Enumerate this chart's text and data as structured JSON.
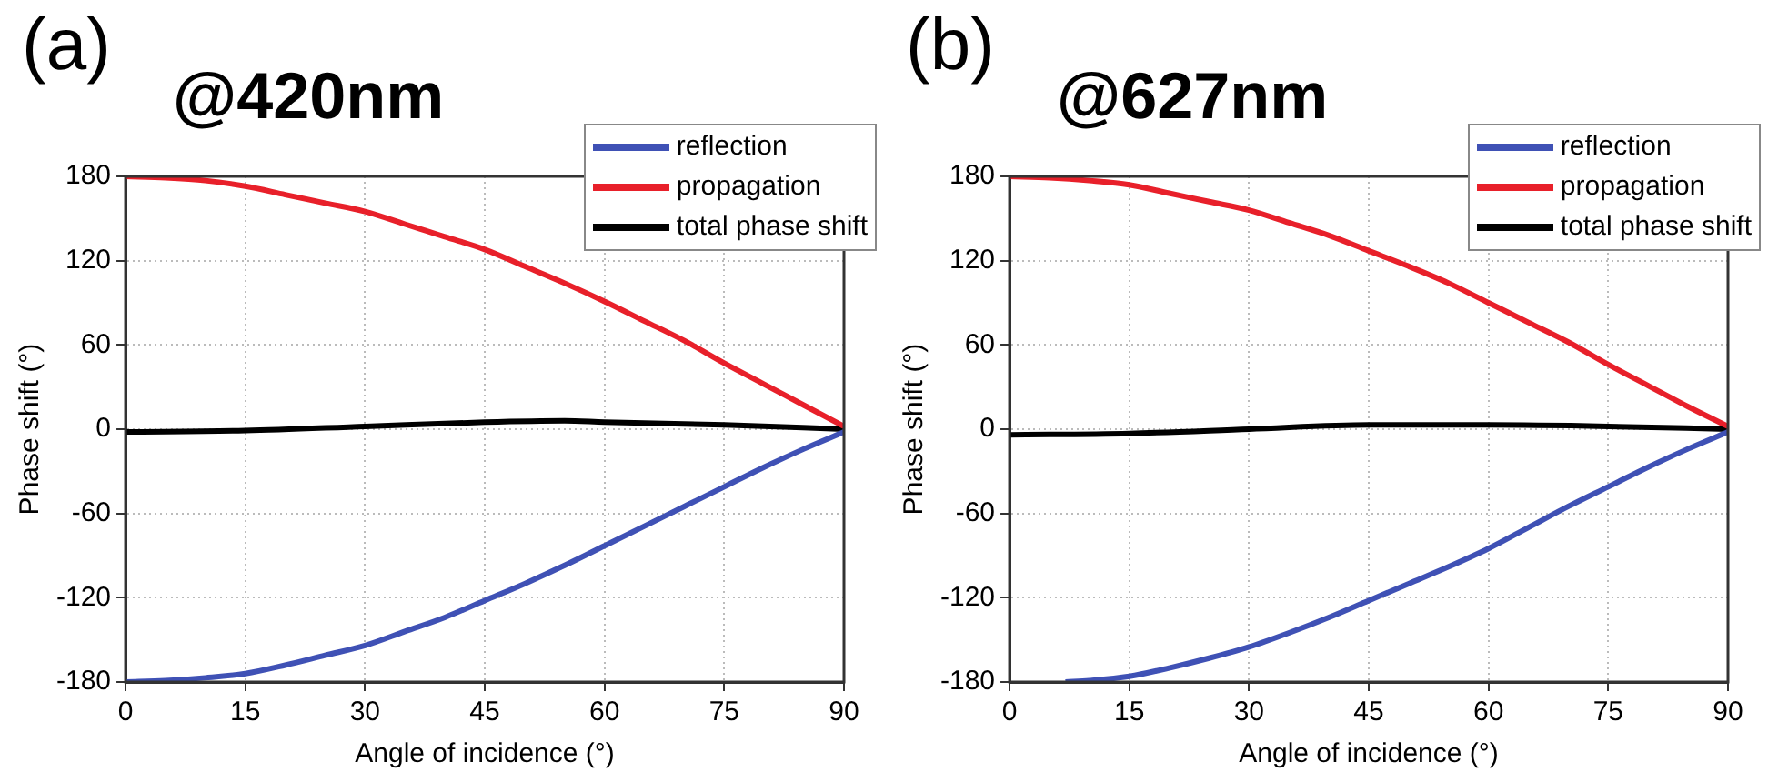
{
  "chart_data": [
    {
      "type": "line",
      "title": "@420nm",
      "xlabel": "Angle of incidence (°)",
      "ylabel": "Phase shift (°)",
      "annotations": [
        "(a)"
      ],
      "xlim": [
        0,
        90
      ],
      "xticks": [
        0,
        15,
        30,
        45,
        60,
        75,
        90
      ],
      "ylim": [
        -180,
        180
      ],
      "yticks": [
        -180,
        -120,
        -60,
        0,
        60,
        120,
        180
      ],
      "grid": true,
      "legend": "top right",
      "line_style": "solid",
      "series": [
        {
          "name": "reflection",
          "color": "#3f51b5",
          "x": [
            0,
            5,
            10,
            15,
            20,
            25,
            30,
            35,
            40,
            45,
            50,
            55,
            60,
            65,
            70,
            75,
            80,
            85,
            90
          ],
          "values": [
            -180,
            -179,
            -177,
            -174,
            -168,
            -161,
            -154,
            -144,
            -134,
            -122,
            -110,
            -97,
            -83,
            -69,
            -55,
            -41,
            -27,
            -14,
            -2
          ]
        },
        {
          "name": "propagation",
          "color": "#e8202a",
          "x": [
            0,
            5,
            10,
            15,
            20,
            25,
            30,
            35,
            40,
            45,
            50,
            55,
            60,
            65,
            70,
            75,
            80,
            85,
            90
          ],
          "values": [
            180,
            179,
            177,
            173,
            167,
            161,
            155,
            146,
            137,
            128,
            116,
            104,
            91,
            77,
            63,
            47,
            32,
            17,
            2
          ]
        },
        {
          "name": "total phase shift",
          "color": "#000000",
          "x": [
            0,
            15,
            30,
            45,
            55,
            60,
            75,
            90
          ],
          "values": [
            -2,
            -1,
            2,
            5,
            6,
            5,
            3,
            0
          ]
        }
      ]
    },
    {
      "type": "line",
      "title": "@627nm",
      "xlabel": "Angle of incidence (°)",
      "ylabel": "Phase shift (°)",
      "annotations": [
        "(b)"
      ],
      "xlim": [
        0,
        90
      ],
      "xticks": [
        0,
        15,
        30,
        45,
        60,
        75,
        90
      ],
      "ylim": [
        -180,
        180
      ],
      "yticks": [
        -180,
        -120,
        -60,
        0,
        60,
        120,
        180
      ],
      "grid": true,
      "legend": "top right",
      "line_style": "solid",
      "series": [
        {
          "name": "reflection",
          "color": "#3f51b5",
          "x": [
            7,
            10,
            15,
            20,
            25,
            30,
            35,
            40,
            45,
            50,
            55,
            60,
            65,
            70,
            75,
            80,
            85,
            90
          ],
          "values": [
            -180,
            -179,
            -176,
            -170,
            -163,
            -155,
            -145,
            -134,
            -122,
            -110,
            -98,
            -85,
            -70,
            -55,
            -41,
            -27,
            -14,
            -2
          ]
        },
        {
          "name": "propagation",
          "color": "#e8202a",
          "x": [
            0,
            5,
            10,
            15,
            20,
            25,
            30,
            35,
            40,
            45,
            50,
            55,
            60,
            65,
            70,
            75,
            80,
            85,
            90
          ],
          "values": [
            180,
            179,
            177,
            174,
            168,
            162,
            156,
            147,
            138,
            127,
            116,
            104,
            90,
            76,
            62,
            46,
            31,
            16,
            2
          ]
        },
        {
          "name": "total phase shift",
          "color": "#000000",
          "x": [
            0,
            15,
            30,
            45,
            60,
            75,
            90
          ],
          "values": [
            -4,
            -3,
            0,
            3,
            3,
            2,
            0
          ]
        }
      ]
    }
  ]
}
